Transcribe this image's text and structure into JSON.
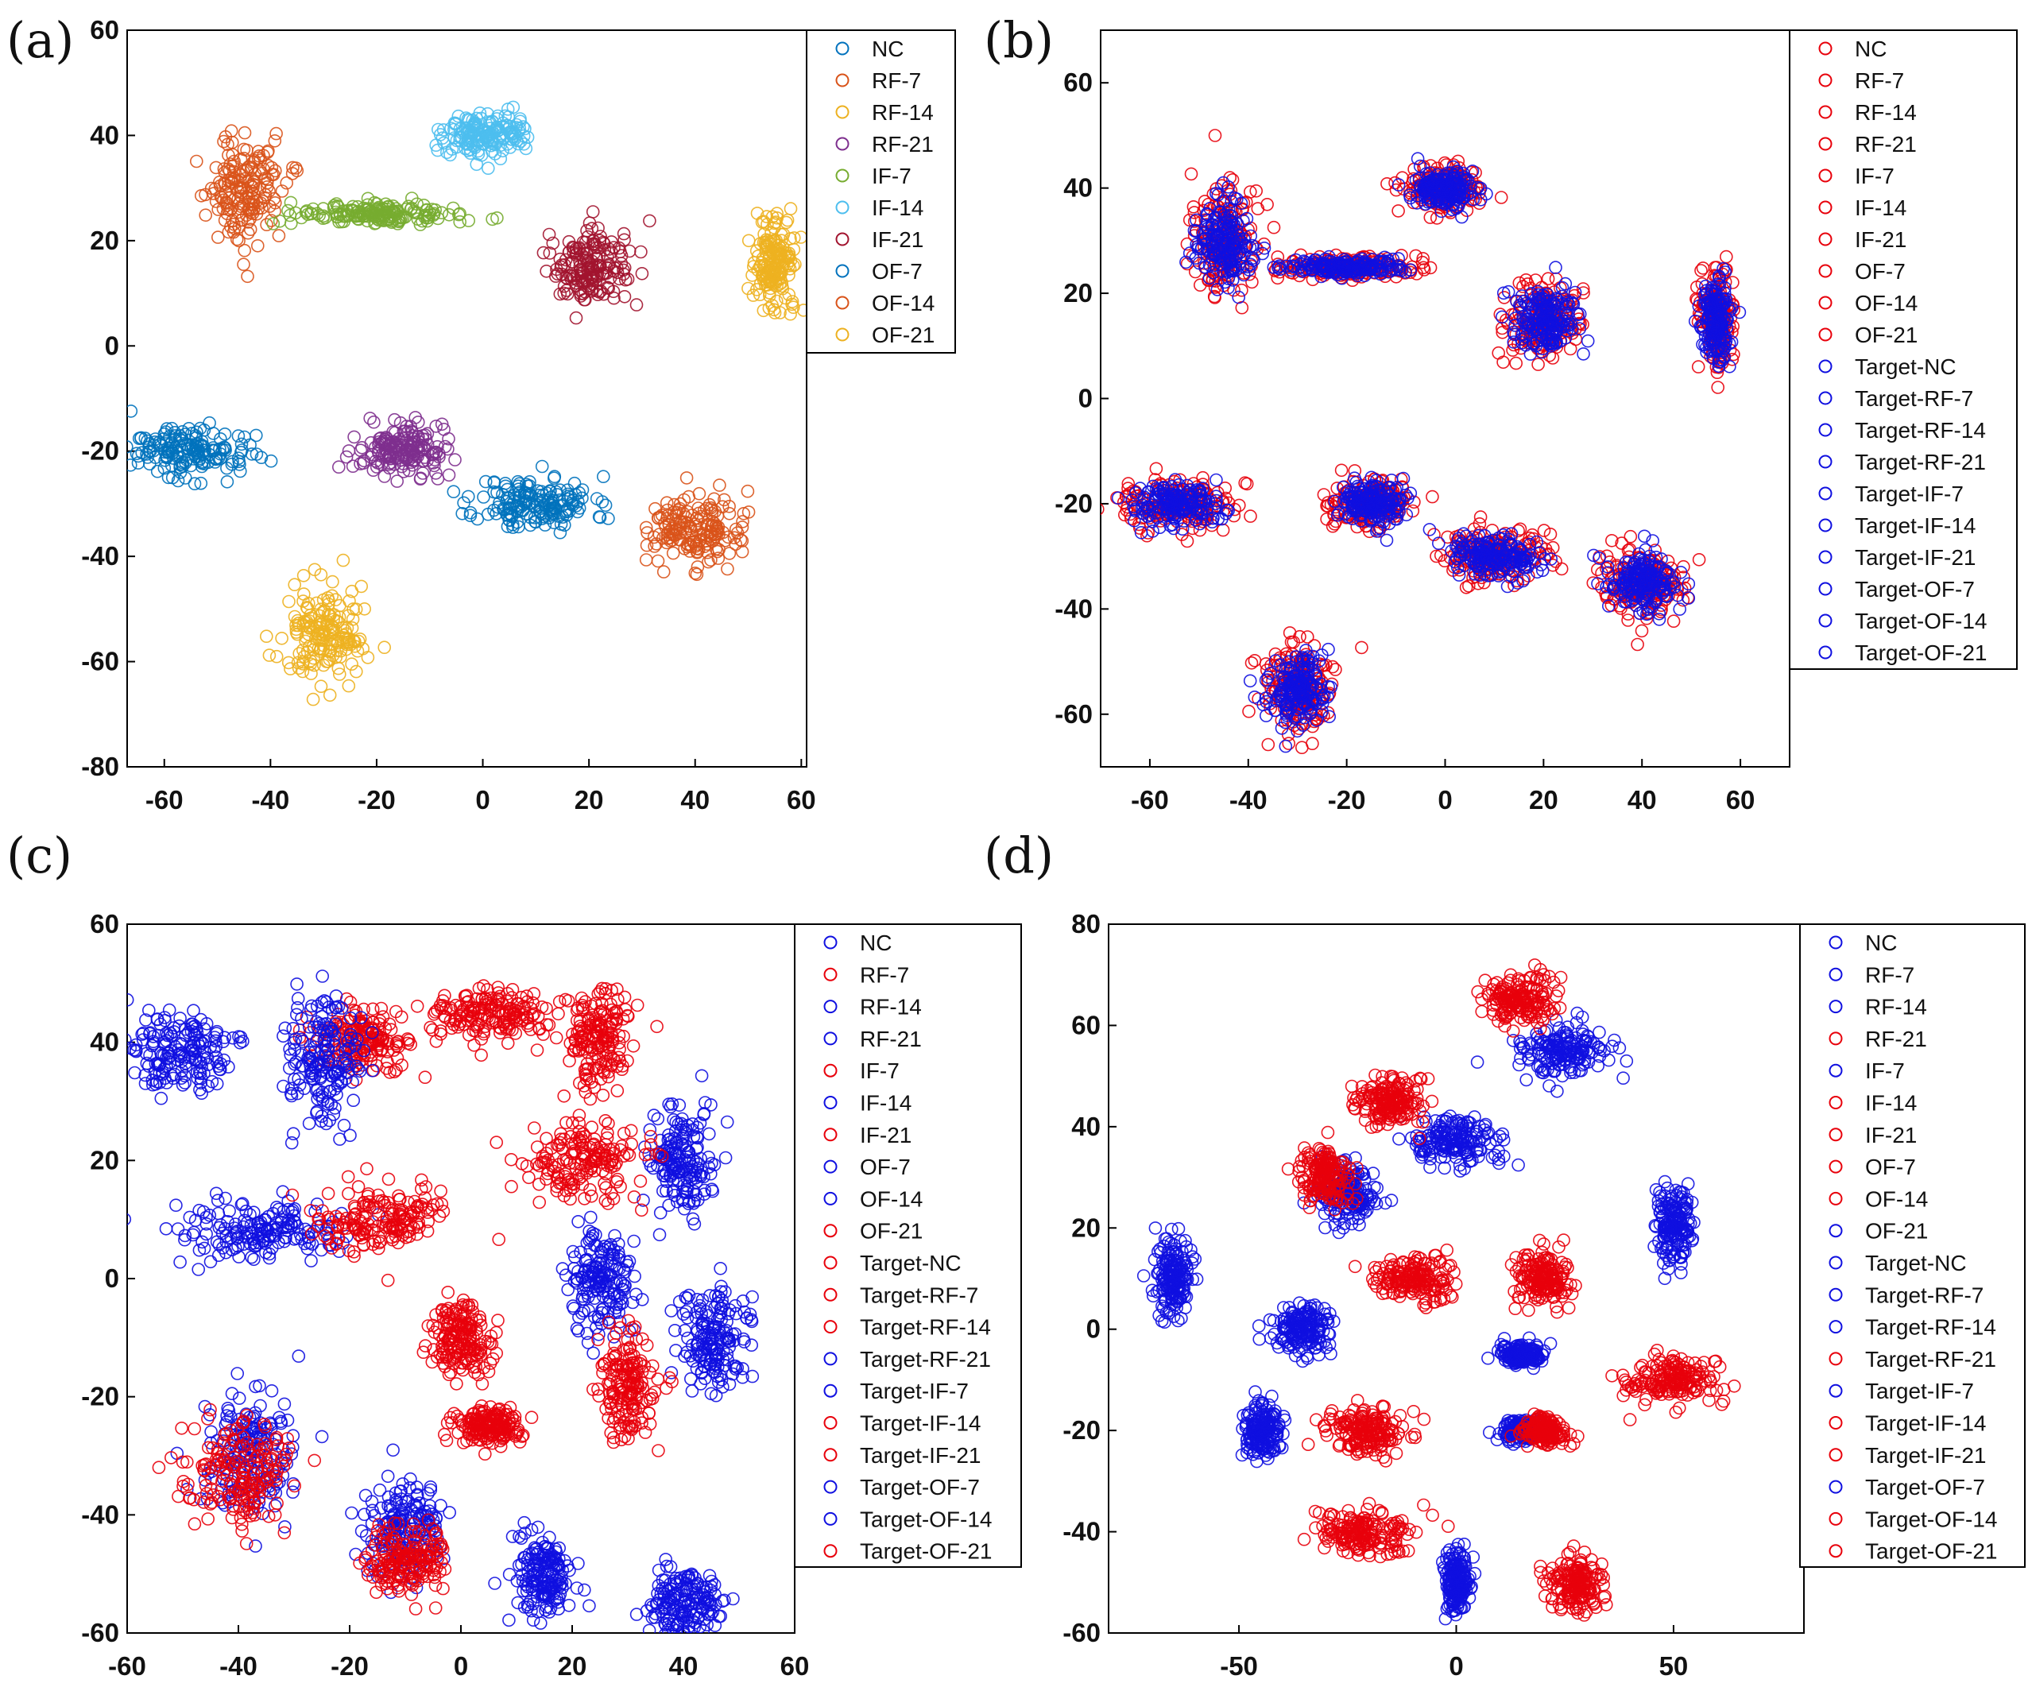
{
  "figure": {
    "panels": [
      "(a)",
      "(b)",
      "(c)",
      "(d)"
    ]
  },
  "chart_data": [
    {
      "panel": "(a)",
      "type": "scatter",
      "marker": "open-circle",
      "xlim": [
        -67,
        61
      ],
      "ylim": [
        -80,
        60
      ],
      "xticks": [
        -60,
        -40,
        -20,
        0,
        20,
        40,
        60
      ],
      "yticks": [
        -80,
        -60,
        -40,
        -20,
        0,
        20,
        40,
        60
      ],
      "legend_position": "top-right",
      "series": [
        {
          "name": "NC",
          "color": "#0072BD",
          "center": [
            10,
            -30
          ],
          "spread": [
            5.5,
            2.6
          ]
        },
        {
          "name": "RF-7",
          "color": "#D95319",
          "center": [
            -45,
            30
          ],
          "spread": [
            3.5,
            4.8
          ]
        },
        {
          "name": "RF-14",
          "color": "#EDB120",
          "center": [
            -30,
            -55
          ],
          "spread": [
            3.8,
            4.5
          ]
        },
        {
          "name": "RF-21",
          "color": "#7E2F8E",
          "center": [
            -15,
            -20
          ],
          "spread": [
            4.0,
            2.5
          ]
        },
        {
          "name": "IF-7",
          "color": "#77AC30",
          "center": [
            -20,
            25
          ],
          "spread": [
            7.5,
            1.0
          ]
        },
        {
          "name": "IF-14",
          "color": "#4DBEEE",
          "center": [
            0,
            40
          ],
          "spread": [
            4.0,
            2.2
          ]
        },
        {
          "name": "IF-21",
          "color": "#A2142F",
          "center": [
            20,
            15
          ],
          "spread": [
            4.0,
            3.6
          ]
        },
        {
          "name": "OF-7",
          "color": "#0072BD",
          "center": [
            -55,
            -20
          ],
          "spread": [
            5.5,
            2.4
          ]
        },
        {
          "name": "OF-14",
          "color": "#D95319",
          "center": [
            40,
            -35
          ],
          "spread": [
            4.5,
            3.2
          ]
        },
        {
          "name": "OF-21",
          "color": "#EDB120",
          "center": [
            55,
            15
          ],
          "spread": [
            2.0,
            4.5
          ]
        }
      ]
    },
    {
      "panel": "(b)",
      "type": "scatter",
      "marker": "open-circle",
      "xlim": [
        -70,
        70
      ],
      "ylim": [
        -70,
        70
      ],
      "xticks": [
        -60,
        -40,
        -20,
        0,
        20,
        40,
        60
      ],
      "yticks": [
        -60,
        -40,
        -20,
        0,
        20,
        40,
        60
      ],
      "legend_position": "top-right",
      "series": [
        {
          "name": "NC",
          "color": "#E8000B",
          "center": [
            10,
            -30
          ],
          "spread": [
            5.5,
            2.6
          ]
        },
        {
          "name": "RF-7",
          "color": "#E8000B",
          "center": [
            -45,
            30
          ],
          "spread": [
            3.5,
            4.8
          ]
        },
        {
          "name": "RF-14",
          "color": "#E8000B",
          "center": [
            -30,
            -55
          ],
          "spread": [
            3.8,
            4.5
          ]
        },
        {
          "name": "RF-21",
          "color": "#E8000B",
          "center": [
            -15,
            -20
          ],
          "spread": [
            4.0,
            2.5
          ]
        },
        {
          "name": "IF-7",
          "color": "#E8000B",
          "center": [
            -20,
            25
          ],
          "spread": [
            7.5,
            1.0
          ]
        },
        {
          "name": "IF-14",
          "color": "#E8000B",
          "center": [
            0,
            40
          ],
          "spread": [
            4.0,
            2.2
          ]
        },
        {
          "name": "IF-21",
          "color": "#E8000B",
          "center": [
            20,
            15
          ],
          "spread": [
            4.0,
            3.6
          ]
        },
        {
          "name": "OF-7",
          "color": "#E8000B",
          "center": [
            -55,
            -20
          ],
          "spread": [
            5.5,
            2.4
          ]
        },
        {
          "name": "OF-14",
          "color": "#E8000B",
          "center": [
            40,
            -35
          ],
          "spread": [
            4.5,
            3.2
          ]
        },
        {
          "name": "OF-21",
          "color": "#E8000B",
          "center": [
            55,
            15
          ],
          "spread": [
            2.0,
            4.5
          ]
        },
        {
          "name": "Target-NC",
          "color": "#1010E0",
          "center": [
            10,
            -30
          ],
          "spread": [
            4.5,
            2.0
          ]
        },
        {
          "name": "Target-RF-7",
          "color": "#1010E0",
          "center": [
            -45,
            30
          ],
          "spread": [
            3.0,
            4.0
          ]
        },
        {
          "name": "Target-RF-14",
          "color": "#1010E0",
          "center": [
            -30,
            -55
          ],
          "spread": [
            3.0,
            3.6
          ]
        },
        {
          "name": "Target-RF-21",
          "color": "#1010E0",
          "center": [
            -15,
            -20
          ],
          "spread": [
            3.2,
            2.0
          ]
        },
        {
          "name": "Target-IF-7",
          "color": "#1010E0",
          "center": [
            -20,
            25
          ],
          "spread": [
            6.0,
            0.8
          ]
        },
        {
          "name": "Target-IF-14",
          "color": "#1010E0",
          "center": [
            0,
            40
          ],
          "spread": [
            3.2,
            1.8
          ]
        },
        {
          "name": "Target-IF-21",
          "color": "#1010E0",
          "center": [
            20,
            15
          ],
          "spread": [
            3.2,
            3.0
          ]
        },
        {
          "name": "Target-OF-7",
          "color": "#1010E0",
          "center": [
            -55,
            -20
          ],
          "spread": [
            4.5,
            2.0
          ]
        },
        {
          "name": "Target-OF-14",
          "color": "#1010E0",
          "center": [
            40,
            -35
          ],
          "spread": [
            3.6,
            2.6
          ]
        },
        {
          "name": "Target-OF-21",
          "color": "#1010E0",
          "center": [
            55,
            15
          ],
          "spread": [
            1.6,
            3.8
          ]
        }
      ]
    },
    {
      "panel": "(c)",
      "type": "scatter",
      "marker": "open-circle",
      "xlim": [
        -60,
        60
      ],
      "ylim": [
        -60,
        60
      ],
      "xticks": [
        -60,
        -40,
        -20,
        0,
        20,
        40,
        60
      ],
      "yticks": [
        -60,
        -40,
        -20,
        0,
        20,
        40,
        60
      ],
      "legend_position": "top-right",
      "series": [
        {
          "name": "NC",
          "color": "#1010E0",
          "center": [
            -50,
            38
          ],
          "spread": [
            4.5,
            3.2
          ]
        },
        {
          "name": "RF-7",
          "color": "#E8000B",
          "center": [
            -18,
            40
          ],
          "spread": [
            4.5,
            2.8
          ]
        },
        {
          "name": "RF-14",
          "color": "#1010E0",
          "center": [
            -25,
            37
          ],
          "spread": [
            3.5,
            5.5
          ]
        },
        {
          "name": "RF-21",
          "color": "#1010E0",
          "center": [
            -35,
            8
          ],
          "spread": [
            7.0,
            2.4
          ]
        },
        {
          "name": "IF-7",
          "color": "#E8000B",
          "center": [
            5,
            45
          ],
          "spread": [
            5.5,
            2.0
          ]
        },
        {
          "name": "IF-14",
          "color": "#1010E0",
          "center": [
            40,
            20
          ],
          "spread": [
            2.8,
            4.2
          ]
        },
        {
          "name": "IF-21",
          "color": "#E8000B",
          "center": [
            22,
            20
          ],
          "spread": [
            5.5,
            3.5
          ]
        },
        {
          "name": "OF-7",
          "color": "#1010E0",
          "center": [
            -38,
            -30
          ],
          "spread": [
            4.0,
            5.0
          ]
        },
        {
          "name": "OF-14",
          "color": "#1010E0",
          "center": [
            -10,
            -42
          ],
          "spread": [
            3.6,
            4.5
          ]
        },
        {
          "name": "OF-21",
          "color": "#E8000B",
          "center": [
            -15,
            10
          ],
          "spread": [
            6.0,
            3.0
          ]
        },
        {
          "name": "Target-NC",
          "color": "#E8000B",
          "center": [
            25,
            40
          ],
          "spread": [
            2.8,
            4.2
          ]
        },
        {
          "name": "Target-RF-7",
          "color": "#E8000B",
          "center": [
            0,
            -10
          ],
          "spread": [
            2.8,
            2.8
          ]
        },
        {
          "name": "Target-RF-14",
          "color": "#E8000B",
          "center": [
            5,
            -25
          ],
          "spread": [
            3.0,
            1.4
          ]
        },
        {
          "name": "Target-RF-21",
          "color": "#1010E0",
          "center": [
            25,
            0
          ],
          "spread": [
            2.8,
            4.5
          ]
        },
        {
          "name": "Target-IF-7",
          "color": "#1010E0",
          "center": [
            45,
            -10
          ],
          "spread": [
            2.8,
            4.5
          ]
        },
        {
          "name": "Target-IF-14",
          "color": "#E8000B",
          "center": [
            30,
            -18
          ],
          "spread": [
            2.5,
            4.2
          ]
        },
        {
          "name": "Target-IF-21",
          "color": "#E8000B",
          "center": [
            -40,
            -33
          ],
          "spread": [
            4.5,
            4.5
          ]
        },
        {
          "name": "Target-OF-7",
          "color": "#1010E0",
          "center": [
            15,
            -50
          ],
          "spread": [
            2.6,
            3.6
          ]
        },
        {
          "name": "Target-OF-14",
          "color": "#1010E0",
          "center": [
            40,
            -55
          ],
          "spread": [
            3.2,
            3.0
          ]
        },
        {
          "name": "Target-OF-21",
          "color": "#E8000B",
          "center": [
            -10,
            -48
          ],
          "spread": [
            3.5,
            3.0
          ]
        }
      ]
    },
    {
      "panel": "(d)",
      "type": "scatter",
      "marker": "open-circle",
      "xlim": [
        -80,
        80
      ],
      "ylim": [
        -60,
        80
      ],
      "xticks": [
        -50,
        0,
        50
      ],
      "yticks": [
        -60,
        -40,
        -20,
        0,
        20,
        40,
        60,
        80
      ],
      "legend_position": "top-right",
      "series": [
        {
          "name": "NC",
          "color": "#1010E0",
          "center": [
            25,
            55
          ],
          "spread": [
            5.5,
            2.6
          ]
        },
        {
          "name": "RF-7",
          "color": "#1010E0",
          "center": [
            0,
            37
          ],
          "spread": [
            5.0,
            2.6
          ]
        },
        {
          "name": "RF-14",
          "color": "#1010E0",
          "center": [
            -25,
            27
          ],
          "spread": [
            3.5,
            2.8
          ]
        },
        {
          "name": "RF-21",
          "color": "#E8000B",
          "center": [
            15,
            65
          ],
          "spread": [
            4.2,
            2.6
          ]
        },
        {
          "name": "IF-7",
          "color": "#1010E0",
          "center": [
            50,
            20
          ],
          "spread": [
            2.2,
            3.6
          ]
        },
        {
          "name": "IF-14",
          "color": "#E8000B",
          "center": [
            -15,
            45
          ],
          "spread": [
            4.2,
            2.4
          ]
        },
        {
          "name": "IF-21",
          "color": "#E8000B",
          "center": [
            -30,
            30
          ],
          "spread": [
            3.0,
            2.8
          ]
        },
        {
          "name": "OF-7",
          "color": "#E8000B",
          "center": [
            -10,
            10
          ],
          "spread": [
            4.5,
            2.2
          ]
        },
        {
          "name": "OF-14",
          "color": "#E8000B",
          "center": [
            20,
            10
          ],
          "spread": [
            3.0,
            2.4
          ]
        },
        {
          "name": "OF-21",
          "color": "#1010E0",
          "center": [
            -65,
            10
          ],
          "spread": [
            2.2,
            3.8
          ]
        },
        {
          "name": "Target-NC",
          "color": "#1010E0",
          "center": [
            -35,
            0
          ],
          "spread": [
            3.2,
            2.4
          ]
        },
        {
          "name": "Target-RF-7",
          "color": "#1010E0",
          "center": [
            15,
            -5
          ],
          "spread": [
            2.5,
            1.0
          ]
        },
        {
          "name": "Target-RF-14",
          "color": "#1010E0",
          "center": [
            -45,
            -20
          ],
          "spread": [
            2.0,
            2.8
          ]
        },
        {
          "name": "Target-RF-21",
          "color": "#E8000B",
          "center": [
            50,
            -10
          ],
          "spread": [
            5.0,
            2.4
          ]
        },
        {
          "name": "Target-IF-7",
          "color": "#1010E0",
          "center": [
            15,
            -20
          ],
          "spread": [
            2.2,
            1.0
          ]
        },
        {
          "name": "Target-IF-14",
          "color": "#E8000B",
          "center": [
            20,
            -20
          ],
          "spread": [
            2.4,
            1.4
          ]
        },
        {
          "name": "Target-IF-21",
          "color": "#E8000B",
          "center": [
            -20,
            -20
          ],
          "spread": [
            4.5,
            2.2
          ]
        },
        {
          "name": "Target-OF-7",
          "color": "#1010E0",
          "center": [
            0,
            -50
          ],
          "spread": [
            1.6,
            2.8
          ]
        },
        {
          "name": "Target-OF-14",
          "color": "#E8000B",
          "center": [
            -20,
            -40
          ],
          "spread": [
            5.5,
            2.2
          ]
        },
        {
          "name": "Target-OF-21",
          "color": "#E8000B",
          "center": [
            27,
            -50
          ],
          "spread": [
            3.0,
            2.6
          ]
        }
      ]
    }
  ]
}
